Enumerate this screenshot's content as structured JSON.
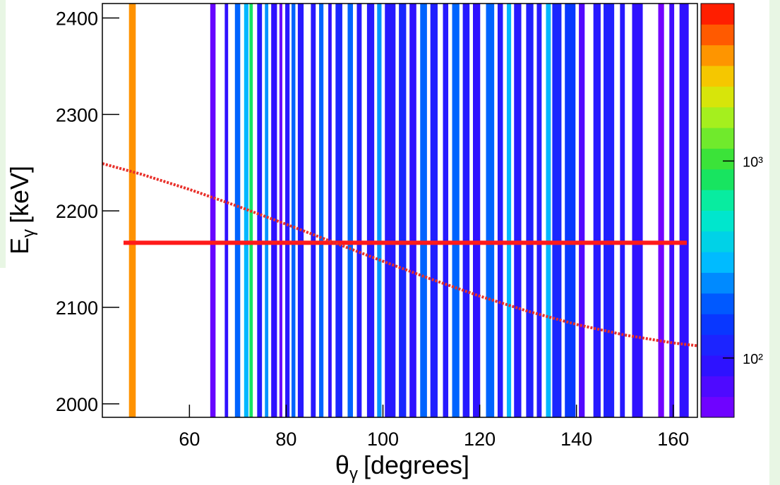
{
  "chart_data": {
    "type": "heatmap2d",
    "x_label": {
      "symbol": "θ",
      "subscript": "γ",
      "text": "[degrees]"
    },
    "y_label": {
      "symbol": "E",
      "subscript": "γ",
      "text": "[keV]"
    },
    "xlim": [
      42,
      165
    ],
    "xticks": [
      60,
      80,
      100,
      120,
      140,
      160
    ],
    "ylim": [
      1986,
      2415
    ],
    "yticks": [
      2000,
      2100,
      2200,
      2300,
      2400
    ],
    "zlim": [
      50,
      6300
    ],
    "zlog": true,
    "zticks": [
      {
        "value": 100,
        "label": "10²"
      },
      {
        "value": 1000,
        "label": "10³"
      }
    ],
    "columns": {
      "x_start": [
        47.5,
        64.3,
        67.3,
        69.4,
        71.3,
        72.4,
        74.0,
        75.6,
        76.9,
        78.6,
        79.8,
        81.1,
        82.4,
        85.1,
        86.8,
        88.7,
        90.2,
        92.7,
        94.6,
        96.7,
        98.8,
        100.4,
        103.3,
        105.5,
        107.7,
        109.8,
        112.4,
        114.3,
        116.5,
        118.6,
        121.3,
        123.7,
        125.6,
        127.1,
        129.6,
        131.8,
        133.7,
        135.0,
        137.6,
        140.5,
        143.5,
        145.6,
        149.0,
        151.5,
        156.9,
        159.2,
        161.3
      ],
      "x_end": [
        48.9,
        65.4,
        68.0,
        70.5,
        72.2,
        73.1,
        75.0,
        76.3,
        78.1,
        79.2,
        80.7,
        81.9,
        83.6,
        86.1,
        87.7,
        89.4,
        91.6,
        93.8,
        95.6,
        98.2,
        99.7,
        102.6,
        104.8,
        106.9,
        109.1,
        111.3,
        113.5,
        115.8,
        117.9,
        120.1,
        123.0,
        124.8,
        126.5,
        128.6,
        131.1,
        132.8,
        134.7,
        136.9,
        139.8,
        141.7,
        145.0,
        147.8,
        150.0,
        153.7,
        158.1,
        160.2,
        163.2
      ],
      "values": [
        3500,
        60,
        90,
        200,
        300,
        800,
        100,
        250,
        90,
        60,
        100,
        200,
        100,
        100,
        200,
        90,
        120,
        200,
        100,
        100,
        250,
        100,
        120,
        90,
        200,
        110,
        100,
        200,
        100,
        90,
        200,
        100,
        300,
        100,
        110,
        100,
        300,
        120,
        150,
        70,
        100,
        110,
        100,
        90,
        55,
        80,
        90
      ]
    },
    "hline": {
      "value": 2167,
      "color": "#ff1a1a"
    },
    "curve": {
      "color": "#e8302a",
      "dashed": true,
      "x": [
        42,
        50,
        60,
        70,
        80,
        90,
        100,
        110,
        120,
        130,
        140,
        150,
        160,
        165
      ],
      "values": [
        2249.1,
        2238.1,
        2222.3,
        2204.8,
        2186.2,
        2167,
        2147.8,
        2129.2,
        2111.7,
        2095.9,
        2082.3,
        2071.3,
        2063.1,
        2060.2
      ]
    }
  }
}
